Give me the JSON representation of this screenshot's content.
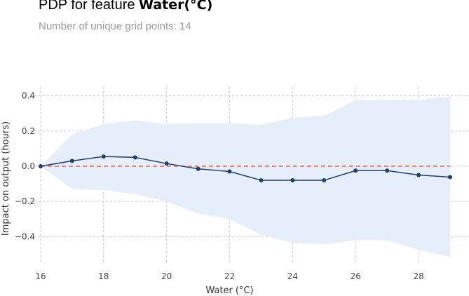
{
  "header": {
    "title_prefix": "PDP for feature",
    "title_feature": "Water(°C)",
    "subtitle": "Number of unique grid points: 14"
  },
  "chart_data": {
    "type": "line",
    "xlabel": "Water (°C)",
    "ylabel": "Impact on output (hours)",
    "xlim": [
      15.4,
      29.6
    ],
    "ylim": [
      -0.55,
      0.45
    ],
    "xticks": [
      16,
      18,
      20,
      22,
      24,
      26,
      28
    ],
    "yticks": [
      0.4,
      0.2,
      0.0,
      -0.2,
      -0.4
    ],
    "ytick_labels": [
      "0.4",
      "0.2",
      "0.0",
      "−0.2",
      "−0.4"
    ],
    "grid": true,
    "x": [
      16,
      17,
      18,
      19,
      20,
      21,
      22,
      23,
      24,
      25,
      26,
      27,
      28,
      29
    ],
    "series": [
      {
        "values": [
          0.0,
          0.03,
          0.055,
          0.05,
          0.015,
          -0.015,
          -0.03,
          -0.08,
          -0.08,
          -0.08,
          -0.025,
          -0.025,
          -0.05,
          -0.062
        ],
        "color": "#1f3f70"
      }
    ],
    "band": {
      "upper": [
        0.0,
        0.18,
        0.24,
        0.26,
        0.24,
        0.245,
        0.245,
        0.235,
        0.275,
        0.285,
        0.375,
        0.375,
        0.375,
        0.395
      ],
      "lower": [
        0.0,
        -0.13,
        -0.135,
        -0.16,
        -0.2,
        -0.27,
        -0.3,
        -0.39,
        -0.435,
        -0.445,
        -0.42,
        -0.42,
        -0.475,
        -0.515
      ],
      "color": "#e5eef9"
    },
    "baseline": {
      "value": 0.0,
      "color": "#e8634a"
    }
  }
}
